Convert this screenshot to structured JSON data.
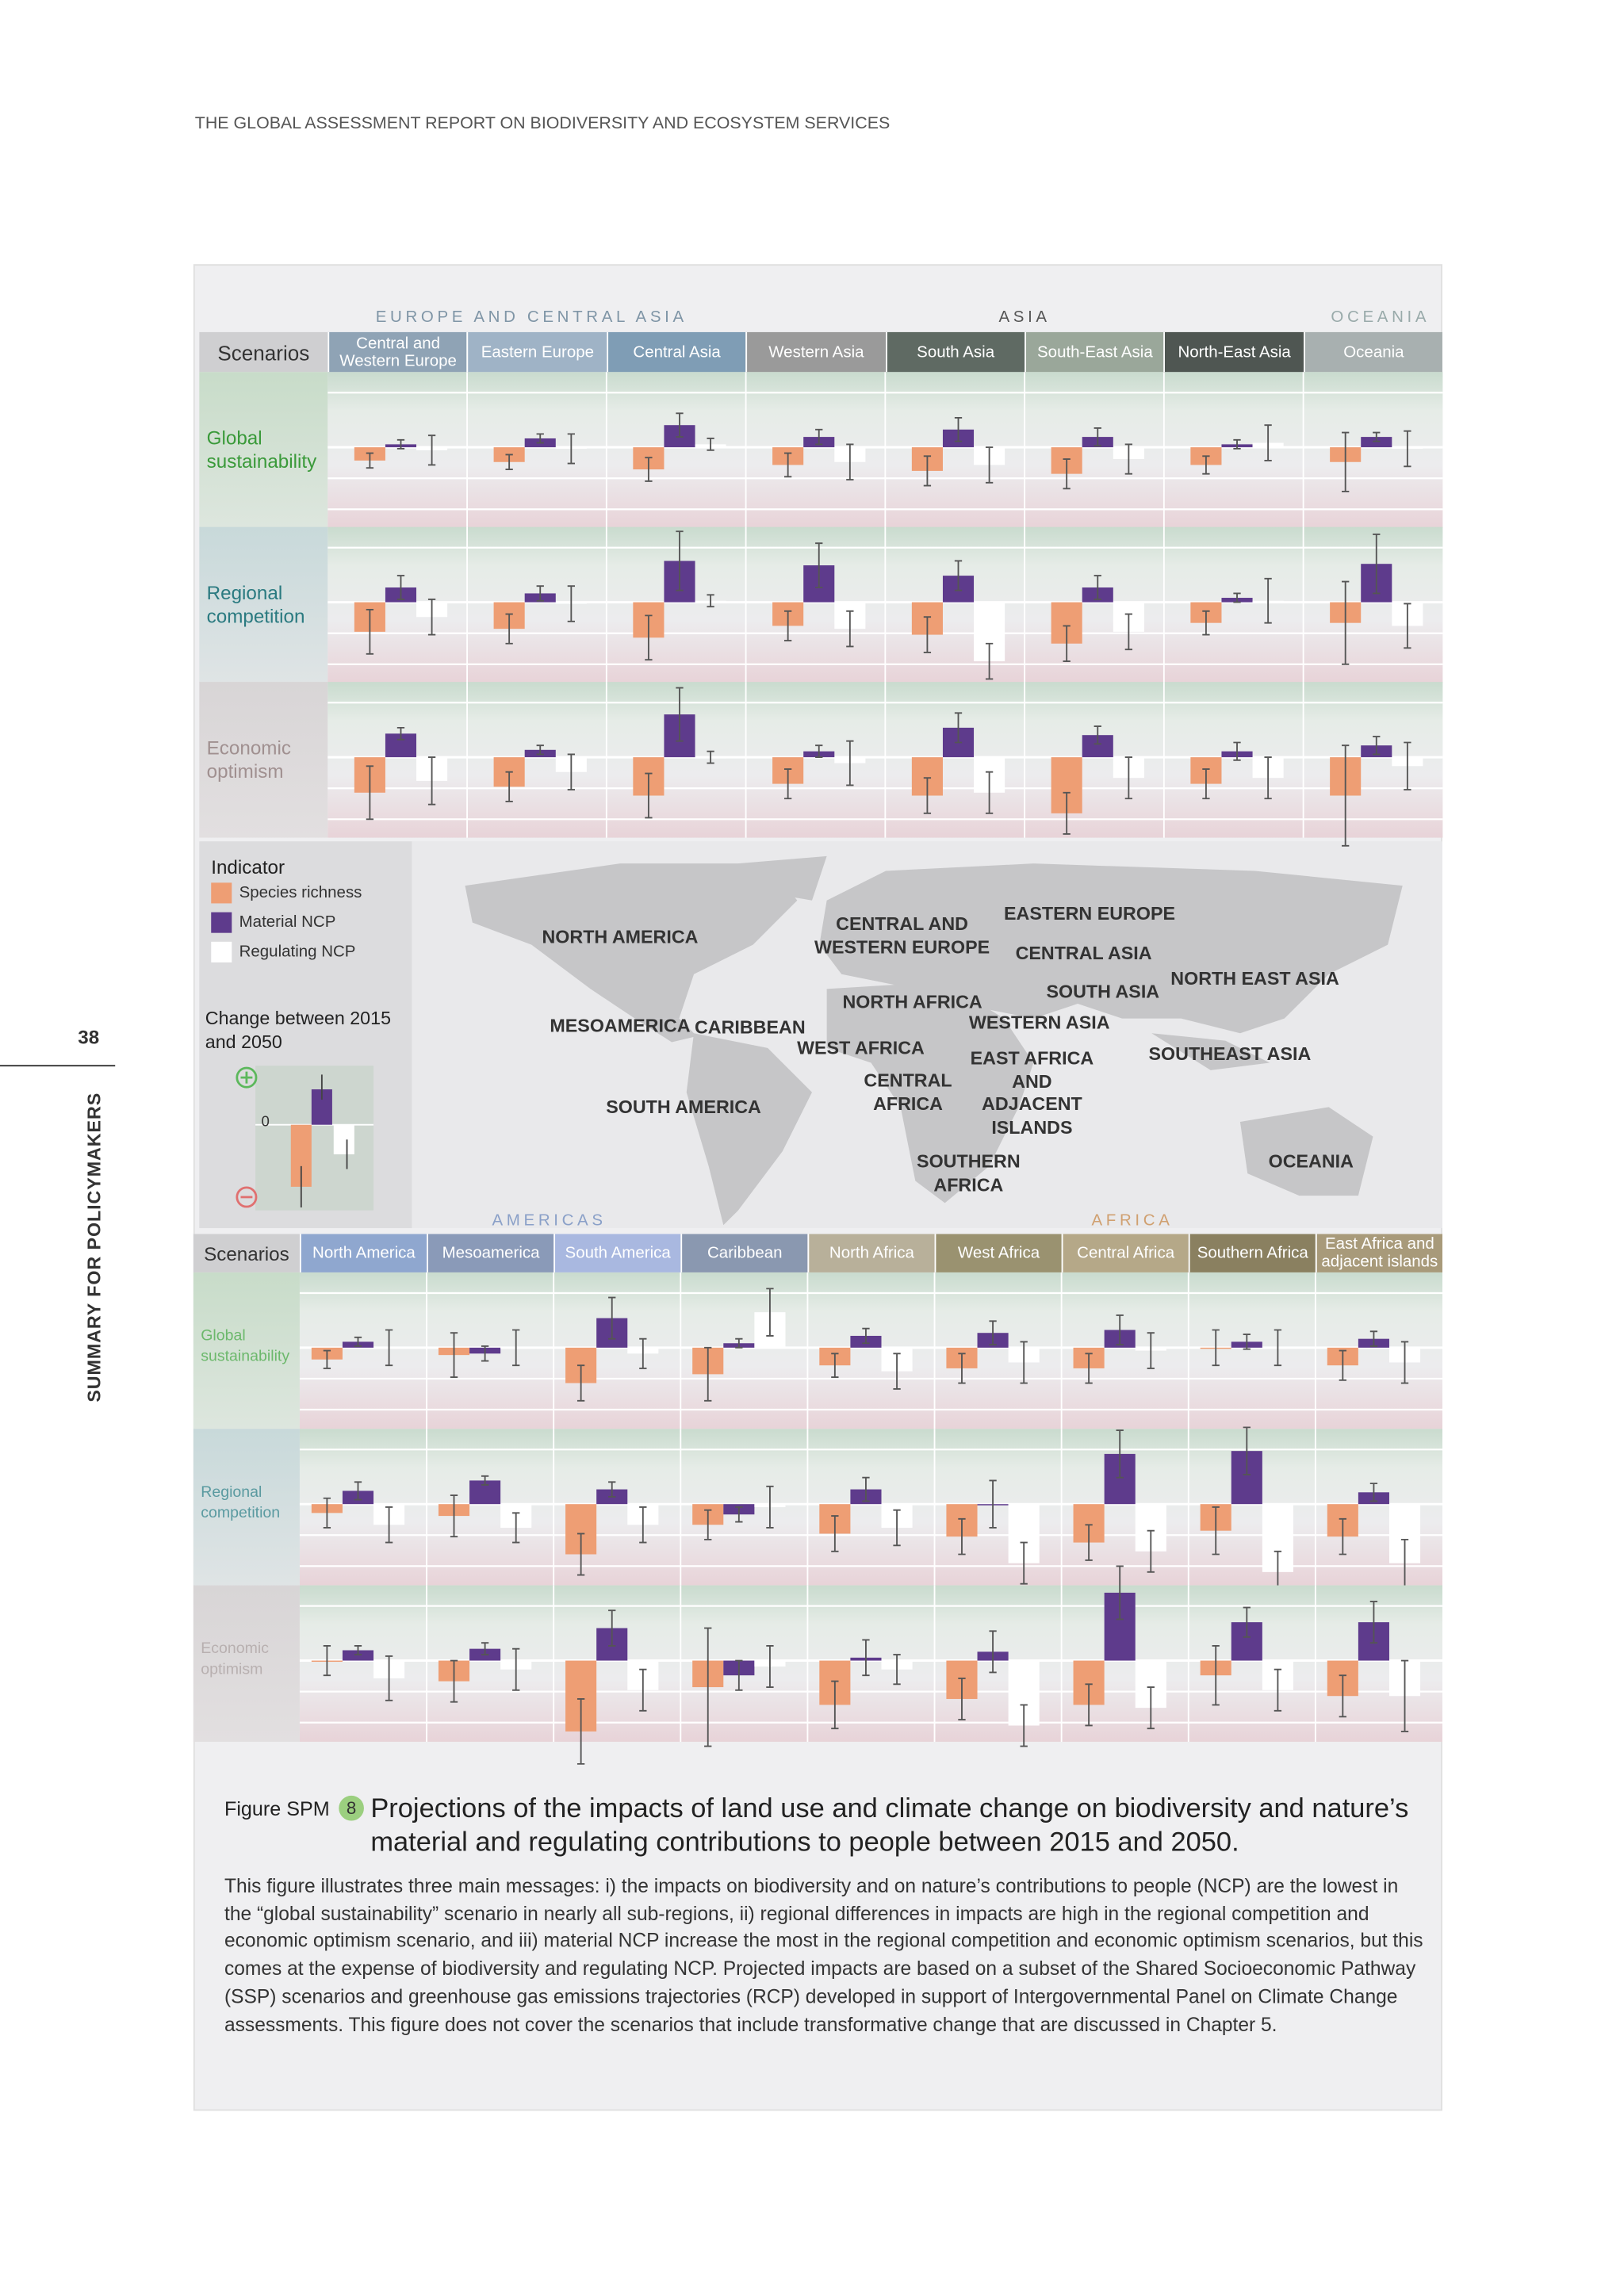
{
  "header": "THE GLOBAL ASSESSMENT REPORT ON BIODIVERSITY AND ECOSYSTEM SERVICES",
  "page_number": 38,
  "side_title": "SUMMARY FOR POLICYMAKERS",
  "legend": {
    "title": "Indicator",
    "items": [
      {
        "label": "Species richness",
        "color": "#ee9e74"
      },
      {
        "label": "Material NCP",
        "color": "#5e3b8c"
      },
      {
        "label": "Regulating NCP",
        "color": "#ffffff"
      }
    ],
    "change_label": "Change between 2015 and 2050",
    "zero": 0
  },
  "map_labels": [
    "NORTH AMERICA",
    "MESOAMERICA",
    "CARIBBEAN",
    "SOUTH AMERICA",
    "CENTRAL AND\nWESTERN EUROPE",
    "EASTERN EUROPE",
    "CENTRAL ASIA",
    "NORTH EAST ASIA",
    "SOUTH ASIA",
    "NORTH AFRICA",
    "WESTERN ASIA",
    "WEST AFRICA",
    "EAST AFRICA\nAND\nADJACENT\nISLANDS",
    "CENTRAL\nAFRICA",
    "SOUTHEAST ASIA",
    "SOUTHERN\nAFRICA",
    "OCEANIA"
  ],
  "top": {
    "groups": [
      {
        "label": "EUROPE AND CENTRAL ASIA",
        "color": "#7f95a6"
      },
      {
        "label": "ASIA",
        "color": "#555555"
      },
      {
        "label": "OCEANIA",
        "color": "#99aaaa"
      }
    ],
    "scenarios_label": "Scenarios",
    "scenarios": [
      {
        "label": "Global sustainability",
        "color": "#3a9a3a"
      },
      {
        "label": "Regional competition",
        "color": "#2a7a80"
      },
      {
        "label": "Economic optimism",
        "color": "#a09090"
      }
    ],
    "regions": [
      {
        "name": "Central and Western Europe",
        "color": "#8fa3b5",
        "values": [
          [
            -9,
            2,
            -2
          ],
          [
            -20,
            10,
            -10
          ],
          [
            -24,
            16,
            -16
          ]
        ],
        "errors": [
          [
            5,
            3,
            10
          ],
          [
            15,
            8,
            12
          ],
          [
            18,
            4,
            16
          ]
        ]
      },
      {
        "name": "Eastern Europe",
        "color": "#9fb3c6",
        "values": [
          [
            -10,
            6,
            -1
          ],
          [
            -18,
            6,
            -1
          ],
          [
            -20,
            5,
            -10
          ]
        ],
        "errors": [
          [
            5,
            3,
            10
          ],
          [
            10,
            5,
            12
          ],
          [
            10,
            3,
            12
          ]
        ]
      },
      {
        "name": "Central Asia",
        "color": "#7f9db5",
        "values": [
          [
            -15,
            15,
            2
          ],
          [
            -24,
            28,
            1
          ],
          [
            -26,
            29,
            0
          ]
        ],
        "errors": [
          [
            8,
            8,
            4
          ],
          [
            15,
            20,
            4
          ],
          [
            15,
            18,
            4
          ]
        ]
      },
      {
        "name": "Western Asia",
        "color": "#9a9a9a",
        "values": [
          [
            -12,
            7,
            -10
          ],
          [
            -16,
            25,
            -18
          ],
          [
            -18,
            4,
            -4
          ]
        ],
        "errors": [
          [
            8,
            5,
            12
          ],
          [
            10,
            15,
            12
          ],
          [
            10,
            4,
            15
          ]
        ]
      },
      {
        "name": "South Asia",
        "color": "#5f6a63",
        "values": [
          [
            -16,
            12,
            -12
          ],
          [
            -22,
            18,
            -40
          ],
          [
            -26,
            20,
            -24
          ]
        ],
        "errors": [
          [
            10,
            8,
            12
          ],
          [
            12,
            10,
            12
          ],
          [
            12,
            10,
            14
          ]
        ]
      },
      {
        "name": "South-East Asia",
        "color": "#9aa79a",
        "values": [
          [
            -18,
            7,
            -8
          ],
          [
            -28,
            10,
            -20
          ],
          [
            -38,
            15,
            -14
          ]
        ],
        "errors": [
          [
            10,
            6,
            10
          ],
          [
            12,
            8,
            12
          ],
          [
            14,
            6,
            14
          ]
        ]
      },
      {
        "name": "North-East Asia",
        "color": "#4f5652",
        "values": [
          [
            -12,
            2,
            3
          ],
          [
            -14,
            3,
            1
          ],
          [
            -18,
            4,
            -14
          ]
        ],
        "errors": [
          [
            6,
            3,
            12
          ],
          [
            8,
            3,
            15
          ],
          [
            10,
            6,
            14
          ]
        ]
      },
      {
        "name": "Oceania",
        "color": "#a8b0b0",
        "values": [
          [
            -10,
            7,
            -1
          ],
          [
            -14,
            26,
            -16
          ],
          [
            -26,
            8,
            -6
          ]
        ],
        "errors": [
          [
            20,
            3,
            12
          ],
          [
            28,
            20,
            15
          ],
          [
            34,
            6,
            16
          ]
        ]
      }
    ]
  },
  "bottom": {
    "groups": [
      {
        "label": "AMERICAS",
        "color": "#8aa0c8"
      },
      {
        "label": "AFRICA",
        "color": "#d0a070"
      }
    ],
    "scenarios_label": "Scenarios",
    "scenarios": [
      {
        "label": "Global sustainability",
        "color": "#6cb86c"
      },
      {
        "label": "Regional competition",
        "color": "#5a9aa0"
      },
      {
        "label": "Economic optimism",
        "color": "#b8b0b0"
      }
    ],
    "regions": [
      {
        "name": "North America",
        "color": "#8fa7cf",
        "values": [
          [
            -8,
            4,
            0
          ],
          [
            -6,
            9,
            -14
          ],
          [
            0,
            7,
            -12
          ]
        ],
        "errors": [
          [
            6,
            3,
            12
          ],
          [
            10,
            6,
            12
          ],
          [
            10,
            3,
            15
          ]
        ]
      },
      {
        "name": "Mesoamerica",
        "color": "#8a9ab8",
        "values": [
          [
            -5,
            -4,
            0
          ],
          [
            -8,
            16,
            -16
          ],
          [
            -14,
            8,
            -6
          ]
        ],
        "errors": [
          [
            15,
            5,
            12
          ],
          [
            14,
            3,
            10
          ],
          [
            14,
            4,
            14
          ]
        ]
      },
      {
        "name": "South America",
        "color": "#a9b8e0",
        "values": [
          [
            -24,
            20,
            -4
          ],
          [
            -34,
            10,
            -14
          ],
          [
            -48,
            22,
            -20
          ]
        ],
        "errors": [
          [
            12,
            14,
            10
          ],
          [
            14,
            5,
            12
          ],
          [
            22,
            12,
            14
          ]
        ]
      },
      {
        "name": "Caribbean",
        "color": "#8a98b0",
        "values": [
          [
            -18,
            3,
            24
          ],
          [
            -14,
            -7,
            -2
          ],
          [
            -18,
            -10,
            -4
          ]
        ],
        "errors": [
          [
            18,
            3,
            16
          ],
          [
            10,
            5,
            14
          ],
          [
            40,
            10,
            14
          ]
        ]
      },
      {
        "name": "North Africa",
        "color": "#b8b09a",
        "values": [
          [
            -12,
            8,
            -16
          ],
          [
            -20,
            10,
            -16
          ],
          [
            -30,
            2,
            -6
          ]
        ],
        "errors": [
          [
            8,
            5,
            12
          ],
          [
            12,
            8,
            12
          ],
          [
            16,
            12,
            10
          ]
        ]
      },
      {
        "name": "West Africa",
        "color": "#9a9270",
        "values": [
          [
            -14,
            10,
            -10
          ],
          [
            -22,
            0,
            -40
          ],
          [
            -26,
            6,
            -44
          ]
        ],
        "errors": [
          [
            10,
            8,
            14
          ],
          [
            12,
            16,
            14
          ],
          [
            14,
            14,
            14
          ]
        ]
      },
      {
        "name": "Central Africa",
        "color": "#b5a888",
        "values": [
          [
            -14,
            12,
            -2
          ],
          [
            -26,
            34,
            -32
          ],
          [
            -30,
            46,
            -32
          ]
        ],
        "errors": [
          [
            10,
            10,
            12
          ],
          [
            12,
            16,
            14
          ],
          [
            14,
            18,
            14
          ]
        ]
      },
      {
        "name": "Southern Africa",
        "color": "#8a8060",
        "values": [
          [
            0,
            4,
            0
          ],
          [
            -18,
            36,
            -46
          ],
          [
            -10,
            26,
            -20
          ]
        ],
        "errors": [
          [
            12,
            5,
            12
          ],
          [
            16,
            16,
            14
          ],
          [
            20,
            10,
            14
          ]
        ]
      },
      {
        "name": "East Africa and adjacent islands",
        "color": "#a89a7a",
        "values": [
          [
            -12,
            6,
            -10
          ],
          [
            -22,
            8,
            -40
          ],
          [
            -24,
            26,
            -24
          ]
        ],
        "errors": [
          [
            10,
            5,
            14
          ],
          [
            12,
            6,
            16
          ],
          [
            14,
            14,
            24
          ]
        ]
      }
    ]
  },
  "caption": {
    "label": "Figure SPM",
    "number": 8,
    "title": "Projections of the impacts of land use and climate change on biodiversity and nature’s material and regulating contributions to people between 2015 and 2050.",
    "body": "This figure illustrates three main messages: i) the impacts on biodiversity and on nature’s contributions to people (NCP) are the lowest in the “global sustainability” scenario in nearly all sub-regions, ii) regional differences in impacts are high in the regional competition and economic optimism scenario, and iii) material NCP increase the most in the regional competition and economic optimism scenarios, but this comes at the expense of biodiversity and regulating NCP. Projected impacts are based on a subset of the Shared Socioeconomic Pathway (SSP) scenarios and greenhouse gas emissions trajectories (RCP) developed in support of Intergovernmental Panel on Climate Change assessments. This figure does not cover the scenarios that include transformative change that are discussed in Chapter 5."
  }
}
